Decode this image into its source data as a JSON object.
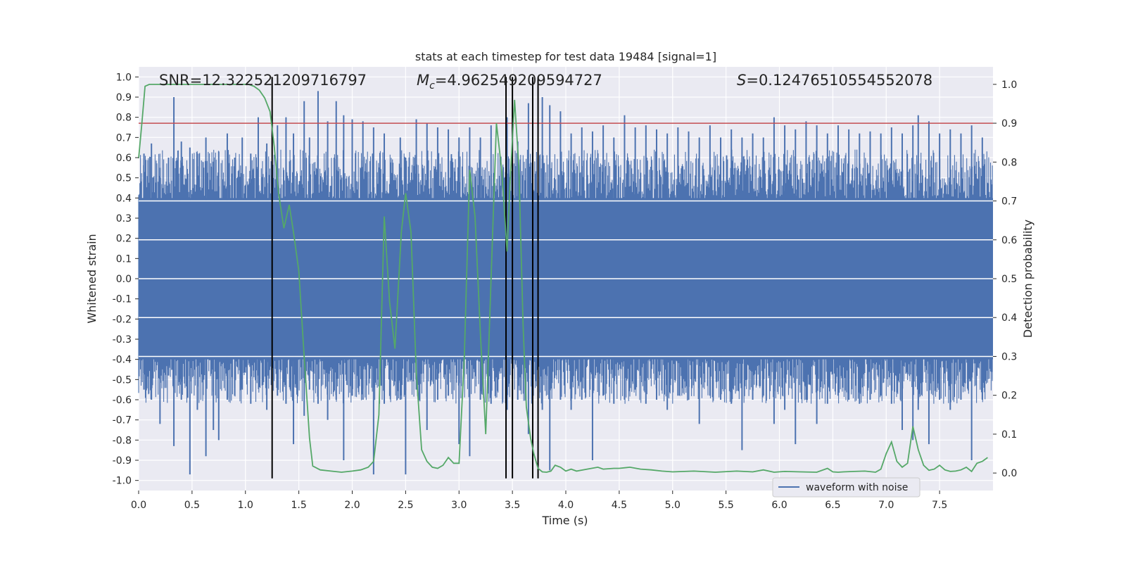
{
  "chart_data": {
    "type": "line",
    "title": "stats at each timestep for test data 19484 [signal=1]",
    "xlabel": "Time (s)",
    "ylabel_left": "Whitened strain",
    "ylabel_right": "Detection probability",
    "xlim": [
      0,
      8
    ],
    "ylim_left": [
      -1.05,
      1.05
    ],
    "ylim_right": [
      -0.045,
      1.045
    ],
    "x_ticks": [
      "0.0",
      "0.5",
      "1.0",
      "1.5",
      "2.0",
      "2.5",
      "3.0",
      "3.5",
      "4.0",
      "4.5",
      "5.0",
      "5.5",
      "6.0",
      "6.5",
      "7.0",
      "7.5"
    ],
    "y_ticks_left": [
      "1.0",
      "0.9",
      "0.8",
      "0.7",
      "0.6",
      "0.5",
      "0.4",
      "0.3",
      "0.2",
      "0.1",
      "0.0",
      "-0.1",
      "-0.2",
      "-0.3",
      "-0.4",
      "-0.5",
      "-0.6",
      "-0.7",
      "-0.8",
      "-0.9",
      "-1.0"
    ],
    "y_ticks_right": [
      "1.0",
      "0.9",
      "0.8",
      "0.7",
      "0.6",
      "0.5",
      "0.4",
      "0.3",
      "0.2",
      "0.1",
      "0.0"
    ],
    "annotations": {
      "snr": "SNR=12.322521209716797",
      "mc_symbol": "M",
      "mc_sub": "c",
      "mc_value": "=4.962549209594727",
      "s_symbol": "S",
      "s_value": "=0.12476510554552078"
    },
    "legend": {
      "label": "waveform with noise",
      "position": "lower-right"
    },
    "threshold": {
      "value": 0.9,
      "axis": "right",
      "color": "#c44e52"
    },
    "vertical_lines": [
      1.25,
      3.44,
      3.5,
      3.69,
      3.74
    ],
    "waveform": {
      "name": "waveform with noise",
      "color": "#4c72b0",
      "core_band": [
        -0.4,
        0.4
      ],
      "spikes": [
        [
          0.05,
          0.62,
          -0.55
        ],
        [
          0.12,
          0.67,
          -0.6
        ],
        [
          0.2,
          0.55,
          -0.72
        ],
        [
          0.28,
          0.6,
          -0.48
        ],
        [
          0.33,
          0.9,
          -0.83
        ],
        [
          0.4,
          0.68,
          -0.6
        ],
        [
          0.48,
          0.65,
          -0.97
        ],
        [
          0.55,
          0.62,
          -0.65
        ],
        [
          0.63,
          0.7,
          -0.88
        ],
        [
          0.7,
          0.58,
          -0.75
        ],
        [
          0.75,
          0.63,
          -0.8
        ],
        [
          0.83,
          0.72,
          -0.6
        ],
        [
          0.9,
          0.6,
          -0.58
        ],
        [
          0.97,
          0.7,
          -0.55
        ],
        [
          1.05,
          0.62,
          -0.62
        ],
        [
          1.12,
          0.8,
          -0.48
        ],
        [
          1.2,
          0.67,
          -0.65
        ],
        [
          1.3,
          0.76,
          -0.58
        ],
        [
          1.38,
          0.8,
          -0.62
        ],
        [
          1.45,
          0.72,
          -0.82
        ],
        [
          1.55,
          0.88,
          -0.68
        ],
        [
          1.6,
          0.7,
          -0.55
        ],
        [
          1.68,
          0.93,
          -0.62
        ],
        [
          1.77,
          0.78,
          -0.7
        ],
        [
          1.85,
          0.88,
          -0.6
        ],
        [
          1.92,
          0.81,
          -0.9
        ],
        [
          2.0,
          0.79,
          -0.58
        ],
        [
          2.1,
          0.78,
          -0.6
        ],
        [
          2.2,
          0.75,
          -0.97
        ],
        [
          2.3,
          0.72,
          -0.62
        ],
        [
          2.45,
          0.7,
          -0.6
        ],
        [
          2.5,
          0.6,
          -0.97
        ],
        [
          2.6,
          0.79,
          -0.55
        ],
        [
          2.7,
          0.77,
          -0.75
        ],
        [
          2.8,
          0.75,
          -0.6
        ],
        [
          2.9,
          0.74,
          -0.58
        ],
        [
          3.0,
          0.7,
          -0.82
        ],
        [
          3.1,
          0.75,
          -0.88
        ],
        [
          3.2,
          0.7,
          -0.6
        ],
        [
          3.3,
          0.76,
          -0.62
        ],
        [
          3.45,
          0.8,
          -0.65
        ],
        [
          3.55,
          0.68,
          -0.6
        ],
        [
          3.65,
          0.87,
          -0.77
        ],
        [
          3.78,
          0.9,
          -0.65
        ],
        [
          3.85,
          0.86,
          -0.95
        ],
        [
          3.95,
          0.83,
          -0.6
        ],
        [
          4.05,
          0.72,
          -0.65
        ],
        [
          4.15,
          0.75,
          -0.6
        ],
        [
          4.25,
          0.73,
          -0.9
        ],
        [
          4.35,
          0.76,
          -0.58
        ],
        [
          4.45,
          0.7,
          -0.62
        ],
        [
          4.55,
          0.81,
          -0.6
        ],
        [
          4.65,
          0.75,
          -0.55
        ],
        [
          4.75,
          0.76,
          -0.62
        ],
        [
          4.85,
          0.74,
          -0.6
        ],
        [
          4.95,
          0.72,
          -0.65
        ],
        [
          5.05,
          0.75,
          -0.58
        ],
        [
          5.15,
          0.73,
          -0.6
        ],
        [
          5.25,
          0.7,
          -0.72
        ],
        [
          5.35,
          0.76,
          -0.58
        ],
        [
          5.45,
          0.7,
          -0.6
        ],
        [
          5.55,
          0.74,
          -0.62
        ],
        [
          5.65,
          0.7,
          -0.85
        ],
        [
          5.75,
          0.72,
          -0.6
        ],
        [
          5.85,
          0.7,
          -0.58
        ],
        [
          5.95,
          0.8,
          -0.72
        ],
        [
          6.05,
          0.76,
          -0.65
        ],
        [
          6.15,
          0.74,
          -0.82
        ],
        [
          6.25,
          0.78,
          -0.6
        ],
        [
          6.35,
          0.76,
          -0.72
        ],
        [
          6.45,
          0.72,
          -0.62
        ],
        [
          6.55,
          0.76,
          -0.58
        ],
        [
          6.65,
          0.74,
          -0.6
        ],
        [
          6.75,
          0.72,
          -0.62
        ],
        [
          6.85,
          0.73,
          -0.6
        ],
        [
          6.95,
          0.72,
          -0.58
        ],
        [
          7.05,
          0.75,
          -0.62
        ],
        [
          7.15,
          0.72,
          -0.75
        ],
        [
          7.25,
          0.76,
          -0.8
        ],
        [
          7.3,
          0.81,
          -0.65
        ],
        [
          7.4,
          0.78,
          -0.82
        ],
        [
          7.5,
          0.72,
          -0.6
        ],
        [
          7.6,
          0.74,
          -0.65
        ],
        [
          7.7,
          0.72,
          -0.6
        ],
        [
          7.8,
          0.76,
          -0.9
        ],
        [
          7.9,
          0.7,
          -0.6
        ]
      ]
    },
    "detection_probability": {
      "name": "detection probability",
      "color": "#55a868",
      "x": [
        0.0,
        0.03,
        0.06,
        0.1,
        0.2,
        0.4,
        0.6,
        0.8,
        0.95,
        1.03,
        1.08,
        1.13,
        1.18,
        1.23,
        1.27,
        1.31,
        1.36,
        1.41,
        1.45,
        1.5,
        1.55,
        1.6,
        1.63,
        1.7,
        1.8,
        1.9,
        2.0,
        2.08,
        2.15,
        2.2,
        2.25,
        2.3,
        2.35,
        2.4,
        2.46,
        2.5,
        2.55,
        2.6,
        2.65,
        2.7,
        2.75,
        2.8,
        2.85,
        2.9,
        2.95,
        3.0,
        3.05,
        3.1,
        3.15,
        3.2,
        3.25,
        3.3,
        3.35,
        3.4,
        3.45,
        3.48,
        3.52,
        3.56,
        3.6,
        3.63,
        3.67,
        3.7,
        3.74,
        3.78,
        3.82,
        3.86,
        3.9,
        3.95,
        4.0,
        4.05,
        4.1,
        4.2,
        4.3,
        4.35,
        4.45,
        4.5,
        4.6,
        4.7,
        4.8,
        4.9,
        5.0,
        5.2,
        5.4,
        5.6,
        5.75,
        5.85,
        5.95,
        6.05,
        6.2,
        6.35,
        6.45,
        6.5,
        6.55,
        6.6,
        6.7,
        6.8,
        6.9,
        6.95,
        7.0,
        7.05,
        7.1,
        7.15,
        7.2,
        7.25,
        7.3,
        7.35,
        7.4,
        7.45,
        7.5,
        7.55,
        7.6,
        7.65,
        7.7,
        7.75,
        7.8,
        7.85,
        7.9,
        7.95
      ],
      "y": [
        0.81,
        0.9,
        0.995,
        1.0,
        1.0,
        1.0,
        1.0,
        1.0,
        1.0,
        1.0,
        0.995,
        0.985,
        0.965,
        0.93,
        0.84,
        0.72,
        0.63,
        0.69,
        0.62,
        0.52,
        0.3,
        0.09,
        0.018,
        0.008,
        0.005,
        0.002,
        0.005,
        0.008,
        0.015,
        0.03,
        0.15,
        0.66,
        0.44,
        0.32,
        0.62,
        0.72,
        0.62,
        0.26,
        0.06,
        0.03,
        0.015,
        0.012,
        0.02,
        0.04,
        0.025,
        0.025,
        0.3,
        0.78,
        0.66,
        0.36,
        0.1,
        0.5,
        0.9,
        0.78,
        0.57,
        0.76,
        0.96,
        0.79,
        0.38,
        0.17,
        0.09,
        0.05,
        0.012,
        0.003,
        0.002,
        0.005,
        0.02,
        0.015,
        0.005,
        0.01,
        0.005,
        0.01,
        0.015,
        0.01,
        0.012,
        0.012,
        0.015,
        0.01,
        0.008,
        0.005,
        0.003,
        0.005,
        0.002,
        0.005,
        0.003,
        0.008,
        0.002,
        0.004,
        0.003,
        0.002,
        0.012,
        0.003,
        0.002,
        0.003,
        0.004,
        0.005,
        0.002,
        0.01,
        0.05,
        0.08,
        0.03,
        0.015,
        0.025,
        0.12,
        0.06,
        0.02,
        0.007,
        0.01,
        0.02,
        0.008,
        0.004,
        0.005,
        0.008,
        0.015,
        0.004,
        0.025,
        0.03,
        0.04
      ]
    }
  }
}
